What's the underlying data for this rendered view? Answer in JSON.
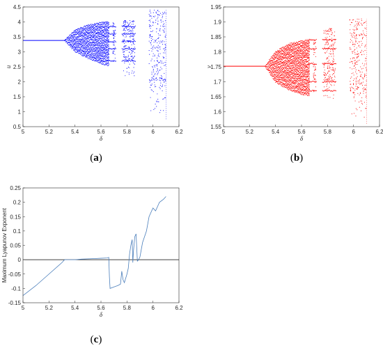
{
  "panels": [
    {
      "id": "a",
      "label": "a",
      "type": "scatter",
      "xlabel": "δ",
      "ylabel": "u",
      "xlim": [
        5,
        6.2
      ],
      "ylim": [
        0.5,
        4.5
      ],
      "xticks": [
        5,
        5.2,
        5.4,
        5.6,
        5.8,
        6,
        6.2
      ],
      "yticks": [
        0.5,
        1,
        1.5,
        2,
        2.5,
        3,
        3.5,
        4,
        4.5
      ],
      "color": "#0000ff",
      "fixed_point": 3.38,
      "bifurcation_start": 5.32,
      "envelope": {
        "x": [
          5.32,
          5.4,
          5.5,
          5.6,
          5.66
        ],
        "upper": [
          3.38,
          3.72,
          3.88,
          3.97,
          4.0
        ],
        "lower": [
          3.38,
          3.02,
          2.8,
          2.62,
          2.55
        ]
      },
      "windows": [
        {
          "x": [
            5.69,
            5.71
          ],
          "lower": 2.5,
          "upper": 4.0
        },
        {
          "x": [
            5.77,
            5.86
          ],
          "lower": 2.1,
          "upper": 4.05
        },
        {
          "x": [
            5.97,
            6.1
          ],
          "lower": 0.75,
          "upper": 4.4
        }
      ],
      "periodic_branches": [
        3.85,
        3.6,
        3.35,
        3.1,
        2.7
      ]
    },
    {
      "id": "b",
      "label": "b",
      "type": "scatter",
      "xlabel": "δ",
      "ylabel": "v",
      "xlim": [
        5,
        6.2
      ],
      "ylim": [
        1.55,
        1.95
      ],
      "xticks": [
        5,
        5.2,
        5.4,
        5.6,
        5.8,
        6,
        6.2
      ],
      "yticks": [
        1.55,
        1.6,
        1.65,
        1.7,
        1.75,
        1.8,
        1.85,
        1.9,
        1.95
      ],
      "color": "#ff0000",
      "fixed_point": 1.752,
      "bifurcation_start": 5.32,
      "envelope": {
        "x": [
          5.32,
          5.4,
          5.5,
          5.6,
          5.66
        ],
        "upper": [
          1.752,
          1.8,
          1.825,
          1.835,
          1.84
        ],
        "lower": [
          1.752,
          1.7,
          1.675,
          1.66,
          1.655
        ]
      },
      "windows": [
        {
          "x": [
            5.69,
            5.71
          ],
          "lower": 1.65,
          "upper": 1.84
        },
        {
          "x": [
            5.77,
            5.86
          ],
          "lower": 1.63,
          "upper": 1.88
        },
        {
          "x": [
            5.97,
            6.1
          ],
          "lower": 1.56,
          "upper": 1.91
        }
      ],
      "periodic_branches": [
        1.84,
        1.81,
        1.76,
        1.7,
        1.67
      ]
    },
    {
      "id": "c",
      "label": "c",
      "type": "line",
      "xlabel": "δ",
      "ylabel": "Maximum Lyapunov Exponent",
      "xlim": [
        5,
        6.2
      ],
      "ylim": [
        -0.15,
        0.25
      ],
      "xticks": [
        5,
        5.2,
        5.4,
        5.6,
        5.8,
        6,
        6.2
      ],
      "yticks": [
        -0.15,
        -0.1,
        -0.05,
        0,
        0.05,
        0.1,
        0.15,
        0.2,
        0.25
      ],
      "color": "#4a7ebb",
      "zero_line": true,
      "series": [
        {
          "x": [
            5.0,
            5.1,
            5.2,
            5.3,
            5.32,
            5.34,
            5.4,
            5.45,
            5.5,
            5.55,
            5.6,
            5.65,
            5.66,
            5.665,
            5.67,
            5.7,
            5.73,
            5.75,
            5.76,
            5.77,
            5.78,
            5.8,
            5.81,
            5.82,
            5.83,
            5.84,
            5.845,
            5.85,
            5.86,
            5.87,
            5.88,
            5.89,
            5.9,
            5.92,
            5.95,
            5.97,
            6.0,
            6.02,
            6.05,
            6.08,
            6.1
          ],
          "y": [
            -0.125,
            -0.09,
            -0.05,
            -0.01,
            0.0,
            0.0,
            0.0,
            0.002,
            0.003,
            0.004,
            0.005,
            0.006,
            0.008,
            -0.06,
            -0.1,
            -0.095,
            -0.09,
            -0.085,
            -0.04,
            -0.07,
            -0.08,
            -0.05,
            -0.03,
            0.02,
            0.05,
            0.07,
            -0.01,
            0.03,
            0.08,
            0.09,
            -0.005,
            0.0,
            0.01,
            0.06,
            0.1,
            0.15,
            0.18,
            0.17,
            0.2,
            0.21,
            0.22
          ]
        }
      ]
    }
  ]
}
